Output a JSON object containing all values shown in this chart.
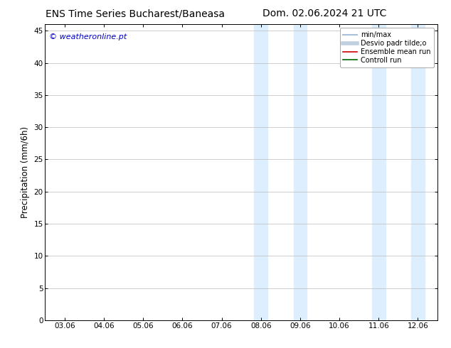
{
  "title_left": "ENS Time Series Bucharest/Baneasa",
  "title_right": "Dom. 02.06.2024 21 UTC",
  "ylabel": "Precipitation (mm/6h)",
  "watermark": "© weatheronline.pt",
  "xtick_labels": [
    "03.06",
    "04.06",
    "05.06",
    "06.06",
    "07.06",
    "08.06",
    "09.06",
    "10.06",
    "11.06",
    "12.06"
  ],
  "xtick_positions": [
    0,
    1,
    2,
    3,
    4,
    5,
    6,
    7,
    8,
    9
  ],
  "ylim": [
    0,
    46
  ],
  "yticks": [
    0,
    5,
    10,
    15,
    20,
    25,
    30,
    35,
    40,
    45
  ],
  "xlim": [
    -0.5,
    9.5
  ],
  "shaded_bands": [
    {
      "x_start": 4.83,
      "x_end": 5.17,
      "color": "#ddeeff"
    },
    {
      "x_start": 5.83,
      "x_end": 6.17,
      "color": "#ddeeff"
    },
    {
      "x_start": 7.83,
      "x_end": 8.17,
      "color": "#ddeeff"
    },
    {
      "x_start": 8.83,
      "x_end": 9.17,
      "color": "#ddeeff"
    }
  ],
  "legend_items": [
    {
      "label": "min/max",
      "color": "#a8c0d8",
      "lw": 1.5
    },
    {
      "label": "Desvio padr tilde;o",
      "color": "#c0d0e0",
      "lw": 4
    },
    {
      "label": "Ensemble mean run",
      "color": "#cc0000",
      "lw": 1.2
    },
    {
      "label": "Controll run",
      "color": "#006600",
      "lw": 1.2
    }
  ],
  "background_color": "#ffffff",
  "plot_bg_color": "#ffffff",
  "grid_color": "#bbbbbb",
  "border_color": "#000000",
  "watermark_color": "#0000cc",
  "title_fontsize": 10,
  "tick_fontsize": 7.5,
  "ylabel_fontsize": 8.5,
  "legend_fontsize": 7.0,
  "watermark_fontsize": 8
}
